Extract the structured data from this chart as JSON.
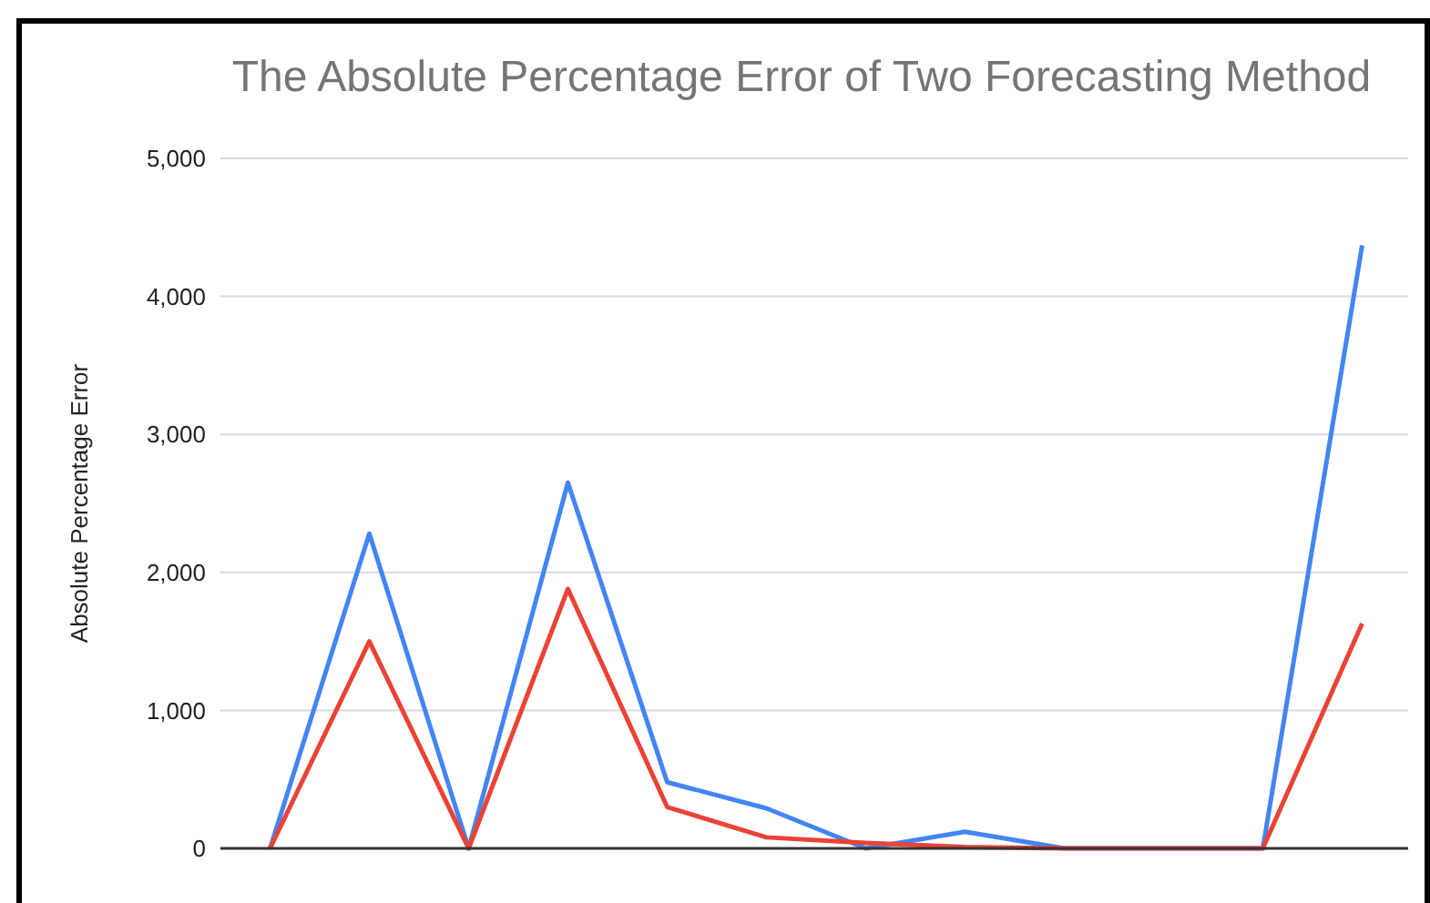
{
  "chart_data": {
    "type": "line",
    "title": "The Absolute Percentage Error of Two Forecasting Method",
    "ylabel": "Absolute Percentage Error",
    "categories": [
      null,
      null,
      null,
      null,
      null,
      null,
      null,
      null,
      null,
      null,
      null,
      null
    ],
    "series": [
      {
        "color": "#4285f4",
        "values": [
          0,
          2280,
          0,
          2650,
          480,
          290,
          0,
          120,
          0,
          0,
          0,
          4370
        ]
      },
      {
        "color": "#ea4335",
        "values": [
          0,
          1500,
          0,
          1880,
          300,
          80,
          40,
          10,
          0,
          0,
          0,
          1630
        ]
      }
    ],
    "ylim": [
      0,
      5000
    ],
    "yticks": [
      {
        "value": 0,
        "label": "0"
      },
      {
        "value": 1000,
        "label": "1,000"
      },
      {
        "value": 2000,
        "label": "2,000"
      },
      {
        "value": 3000,
        "label": "3,000"
      },
      {
        "value": 4000,
        "label": "4,000"
      },
      {
        "value": 5000,
        "label": "5,000"
      }
    ],
    "grid": "y",
    "marker": "none",
    "line_style": "solid"
  }
}
